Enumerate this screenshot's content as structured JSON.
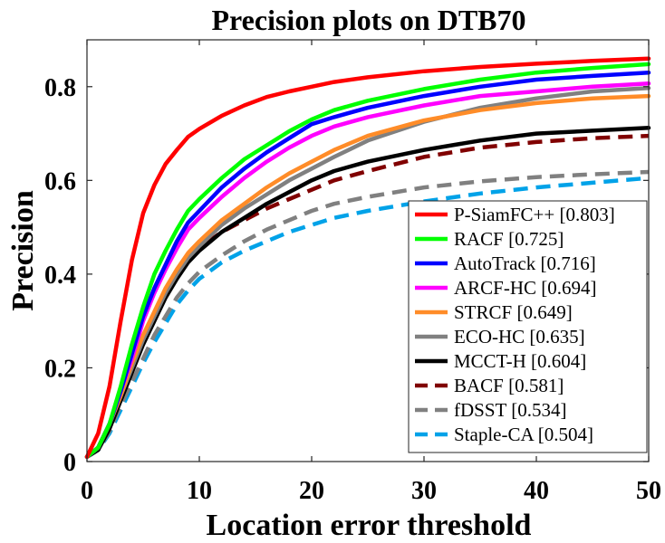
{
  "chart_data": {
    "type": "line",
    "title": "Precision plots on DTB70",
    "xlabel": "Location error threshold",
    "ylabel": "Precision",
    "xlim": [
      0,
      50
    ],
    "ylim": [
      0,
      0.9
    ],
    "xticks": [
      0,
      10,
      20,
      30,
      40,
      50
    ],
    "yticks": [
      0,
      0.2,
      0.4,
      0.6,
      0.8
    ],
    "xtick_labels": [
      "0",
      "10",
      "20",
      "30",
      "40",
      "50"
    ],
    "ytick_labels": [
      "0",
      "0.2",
      "0.4",
      "0.6",
      "0.8"
    ],
    "grid": false,
    "legend_position": "bottom-right",
    "x": [
      0,
      1,
      2,
      3,
      4,
      5,
      6,
      7,
      8,
      9,
      10,
      12,
      14,
      16,
      18,
      20,
      22,
      25,
      30,
      35,
      40,
      45,
      50
    ],
    "series": [
      {
        "name": "P-SiamFC++",
        "score": "[0.803]",
        "color": "#ff0000",
        "dash": false,
        "values": [
          0.01,
          0.06,
          0.16,
          0.3,
          0.43,
          0.53,
          0.59,
          0.635,
          0.665,
          0.693,
          0.71,
          0.738,
          0.76,
          0.778,
          0.79,
          0.8,
          0.81,
          0.82,
          0.833,
          0.842,
          0.849,
          0.855,
          0.86
        ]
      },
      {
        "name": "RACF",
        "score": "[0.725]",
        "color": "#00ff00",
        "dash": false,
        "values": [
          0.01,
          0.03,
          0.08,
          0.16,
          0.25,
          0.33,
          0.4,
          0.45,
          0.495,
          0.535,
          0.56,
          0.605,
          0.645,
          0.675,
          0.705,
          0.73,
          0.75,
          0.77,
          0.795,
          0.815,
          0.83,
          0.84,
          0.848
        ]
      },
      {
        "name": "AutoTrack",
        "score": "[0.716]",
        "color": "#0000ff",
        "dash": false,
        "values": [
          0.01,
          0.03,
          0.08,
          0.15,
          0.23,
          0.31,
          0.37,
          0.42,
          0.47,
          0.51,
          0.535,
          0.585,
          0.625,
          0.66,
          0.69,
          0.72,
          0.735,
          0.755,
          0.78,
          0.8,
          0.815,
          0.823,
          0.83
        ]
      },
      {
        "name": "ARCF-HC",
        "score": "[0.694]",
        "color": "#ff00ff",
        "dash": false,
        "values": [
          0.01,
          0.03,
          0.08,
          0.15,
          0.22,
          0.3,
          0.36,
          0.41,
          0.455,
          0.495,
          0.52,
          0.565,
          0.605,
          0.64,
          0.67,
          0.695,
          0.715,
          0.735,
          0.76,
          0.78,
          0.79,
          0.8,
          0.807
        ]
      },
      {
        "name": "STRCF",
        "score": "[0.649]",
        "color": "#ff8c28",
        "dash": false,
        "values": [
          0.01,
          0.03,
          0.08,
          0.14,
          0.21,
          0.27,
          0.32,
          0.37,
          0.41,
          0.445,
          0.47,
          0.515,
          0.55,
          0.585,
          0.615,
          0.64,
          0.665,
          0.695,
          0.728,
          0.75,
          0.765,
          0.775,
          0.78
        ]
      },
      {
        "name": "ECO-HC",
        "score": "[0.635]",
        "color": "#808080",
        "dash": false,
        "values": [
          0.01,
          0.03,
          0.08,
          0.14,
          0.2,
          0.26,
          0.31,
          0.36,
          0.4,
          0.435,
          0.46,
          0.505,
          0.54,
          0.57,
          0.6,
          0.625,
          0.65,
          0.685,
          0.725,
          0.755,
          0.775,
          0.79,
          0.797
        ]
      },
      {
        "name": "MCCT-H",
        "score": "[0.604]",
        "color": "#000000",
        "dash": false,
        "values": [
          0.01,
          0.025,
          0.07,
          0.13,
          0.19,
          0.25,
          0.3,
          0.35,
          0.39,
          0.425,
          0.45,
          0.49,
          0.52,
          0.55,
          0.575,
          0.6,
          0.62,
          0.64,
          0.665,
          0.685,
          0.7,
          0.706,
          0.712
        ]
      },
      {
        "name": "BACF",
        "score": "[0.581]",
        "color": "#800000",
        "dash": true,
        "values": [
          0.01,
          0.03,
          0.08,
          0.14,
          0.2,
          0.26,
          0.31,
          0.36,
          0.4,
          0.43,
          0.455,
          0.49,
          0.515,
          0.54,
          0.56,
          0.58,
          0.6,
          0.62,
          0.65,
          0.67,
          0.682,
          0.69,
          0.695
        ]
      },
      {
        "name": "fDSST",
        "score": "[0.534]",
        "color": "#808080",
        "dash": true,
        "values": [
          0.01,
          0.025,
          0.065,
          0.12,
          0.17,
          0.22,
          0.27,
          0.31,
          0.35,
          0.38,
          0.405,
          0.44,
          0.47,
          0.495,
          0.515,
          0.535,
          0.55,
          0.565,
          0.585,
          0.598,
          0.607,
          0.613,
          0.618
        ]
      },
      {
        "name": "Staple-CA",
        "score": "[0.504]",
        "color": "#00a2e8",
        "dash": true,
        "values": [
          0.01,
          0.025,
          0.06,
          0.11,
          0.16,
          0.21,
          0.255,
          0.295,
          0.335,
          0.365,
          0.39,
          0.425,
          0.45,
          0.47,
          0.49,
          0.505,
          0.52,
          0.535,
          0.555,
          0.572,
          0.585,
          0.595,
          0.605
        ]
      }
    ]
  }
}
